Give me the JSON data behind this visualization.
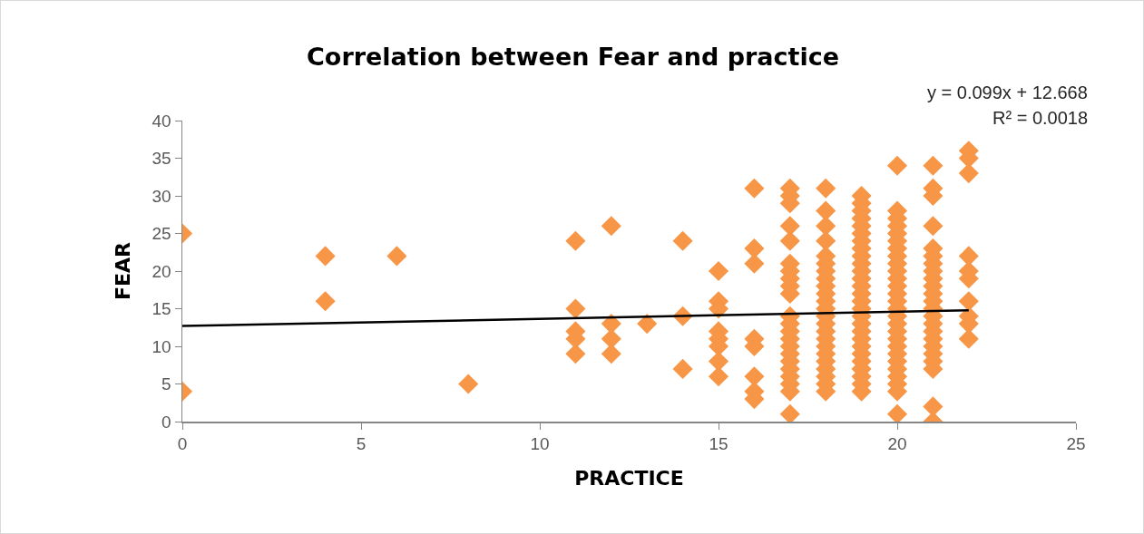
{
  "chart_data": {
    "type": "scatter",
    "title": "Correlation between Fear and practice",
    "xlabel": "PRACTICE",
    "ylabel": "FEAR",
    "annotations": [
      "y = 0.099x + 12.668",
      "R² = 0.0018"
    ],
    "xlim": [
      0,
      25
    ],
    "xticks": [
      0,
      5,
      10,
      15,
      20,
      25
    ],
    "ylim": [
      0,
      40
    ],
    "yticks": [
      0,
      5,
      10,
      15,
      20,
      25,
      30,
      35,
      40
    ],
    "grid": false,
    "series": [
      {
        "marker": "diamond",
        "color": "#f79646",
        "x": [
          0,
          0,
          4,
          4,
          6,
          8,
          11,
          11,
          11,
          11,
          11,
          12,
          12,
          12,
          12,
          13,
          14,
          14,
          14,
          15,
          15,
          15,
          15,
          15,
          15,
          15,
          15,
          16,
          16,
          16,
          16,
          16,
          16,
          16,
          16,
          17,
          17,
          17,
          17,
          17,
          17,
          17,
          17,
          17,
          17,
          17,
          17,
          17,
          17,
          17,
          17,
          17,
          17,
          17,
          17,
          17,
          17,
          18,
          18,
          18,
          18,
          18,
          18,
          18,
          18,
          18,
          18,
          18,
          18,
          18,
          18,
          18,
          18,
          18,
          18,
          18,
          18,
          18,
          18,
          18,
          19,
          19,
          19,
          19,
          19,
          19,
          19,
          19,
          19,
          19,
          19,
          19,
          19,
          19,
          19,
          19,
          19,
          19,
          19,
          19,
          19,
          19,
          19,
          19,
          19,
          19,
          19,
          20,
          20,
          20,
          20,
          20,
          20,
          20,
          20,
          20,
          20,
          20,
          20,
          20,
          20,
          20,
          20,
          20,
          20,
          20,
          20,
          20,
          20,
          20,
          20,
          20,
          20,
          20,
          21,
          21,
          21,
          21,
          21,
          21,
          21,
          21,
          21,
          21,
          21,
          21,
          21,
          21,
          21,
          21,
          21,
          21,
          21,
          21,
          21,
          21,
          21,
          22,
          22,
          22,
          22,
          22,
          22,
          22,
          22,
          22,
          22
        ],
        "values": [
          25,
          4,
          22,
          16,
          22,
          5,
          24,
          15,
          12,
          11,
          9,
          26,
          13,
          11,
          9,
          13,
          24,
          14,
          7,
          20,
          16,
          15,
          12,
          11,
          10,
          8,
          6,
          31,
          23,
          21,
          11,
          10,
          6,
          4,
          3,
          31,
          30,
          29,
          26,
          24,
          21,
          20,
          19,
          18,
          17,
          14,
          13,
          12,
          11,
          10,
          9,
          8,
          7,
          6,
          5,
          4,
          1,
          31,
          28,
          26,
          24,
          22,
          21,
          20,
          19,
          18,
          17,
          16,
          15,
          14,
          13,
          12,
          11,
          10,
          9,
          8,
          7,
          6,
          5,
          4,
          30,
          29,
          28,
          27,
          26,
          25,
          24,
          23,
          22,
          21,
          20,
          19,
          18,
          17,
          16,
          15,
          14,
          13,
          12,
          11,
          10,
          9,
          8,
          7,
          6,
          5,
          4,
          34,
          28,
          27,
          26,
          25,
          24,
          23,
          22,
          21,
          20,
          19,
          18,
          17,
          16,
          15,
          14,
          13,
          12,
          11,
          10,
          9,
          8,
          7,
          6,
          5,
          4,
          1,
          34,
          31,
          30,
          26,
          23,
          22,
          21,
          20,
          19,
          18,
          17,
          16,
          15,
          14,
          13,
          12,
          11,
          10,
          9,
          8,
          7,
          2,
          0,
          36,
          35,
          33,
          22,
          20,
          19,
          16,
          14,
          13,
          11
        ]
      },
      {
        "type": "line",
        "marker": "none",
        "color": "#000000",
        "x": [
          0,
          22
        ],
        "values": [
          12.7,
          14.8
        ]
      }
    ]
  }
}
